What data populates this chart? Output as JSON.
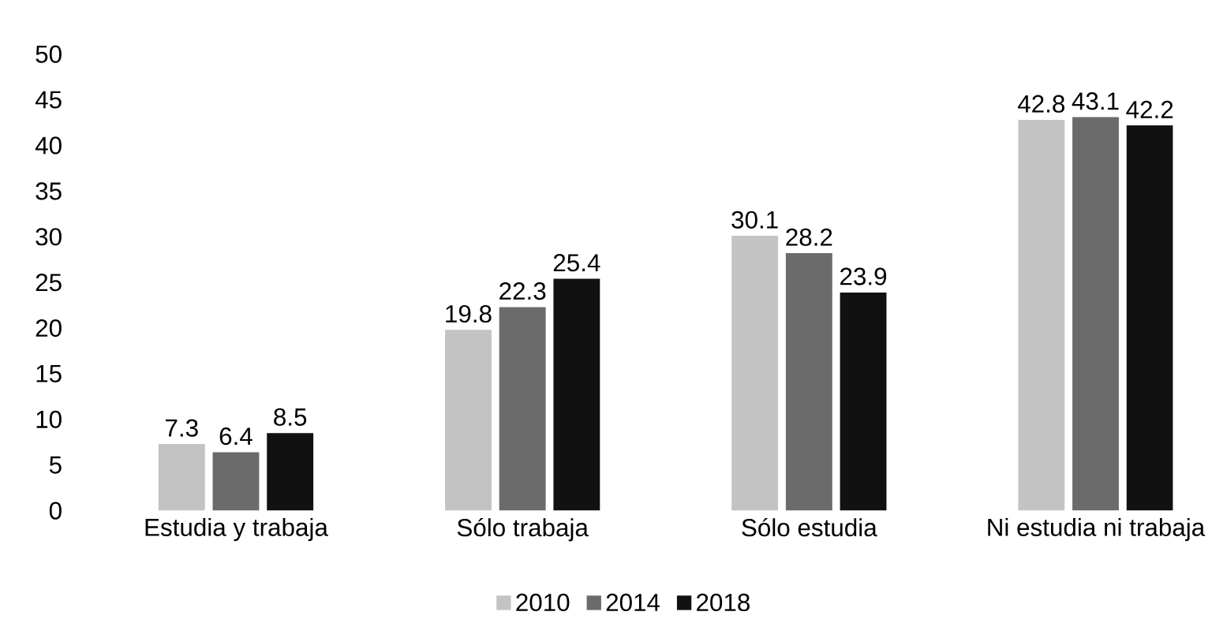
{
  "chart_data": {
    "type": "bar",
    "categories": [
      "Estudia y trabaja",
      "Sólo trabaja",
      "Sólo estudia",
      "Ni estudia ni trabaja"
    ],
    "series": [
      {
        "name": "2010",
        "color": "#c3c3c3",
        "values": [
          7.3,
          19.8,
          30.1,
          42.8
        ]
      },
      {
        "name": "2014",
        "color": "#6b6b6b",
        "values": [
          6.4,
          22.3,
          28.2,
          43.1
        ]
      },
      {
        "name": "2018",
        "color": "#111111",
        "values": [
          8.5,
          25.4,
          23.9,
          42.2
        ]
      }
    ],
    "ylim": [
      0,
      50
    ],
    "yticks": [
      0,
      5,
      10,
      15,
      20,
      25,
      30,
      35,
      40,
      45,
      50
    ],
    "data_labels": true,
    "legend": "bottom",
    "grid": false
  }
}
